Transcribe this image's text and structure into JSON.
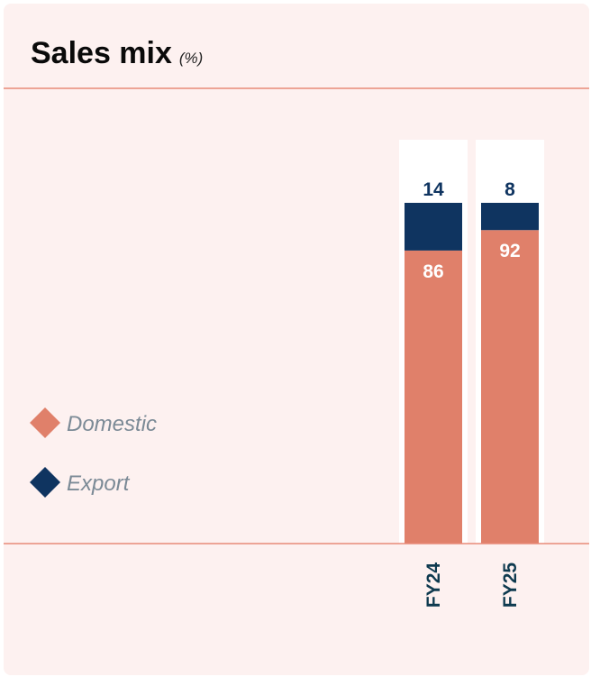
{
  "title": "Sales mix",
  "unit": "(%)",
  "colors": {
    "domestic": "#e0806a",
    "export": "#0f3460",
    "rule": "#e88a78",
    "background": "#fdf1f0",
    "track": "#ffffff"
  },
  "legend": [
    {
      "name": "Domestic",
      "color": "#e0806a",
      "icon": "diamond-icon"
    },
    {
      "name": "Export",
      "color": "#0f3460",
      "icon": "diamond-icon"
    }
  ],
  "chart_data": {
    "type": "bar",
    "stacked": true,
    "categories": [
      "FY24",
      "FY25"
    ],
    "series": [
      {
        "name": "Domestic",
        "values": [
          86,
          92
        ]
      },
      {
        "name": "Export",
        "values": [
          14,
          8
        ]
      }
    ],
    "ylim": [
      0,
      100
    ],
    "grid": false,
    "legend_position": "left"
  }
}
